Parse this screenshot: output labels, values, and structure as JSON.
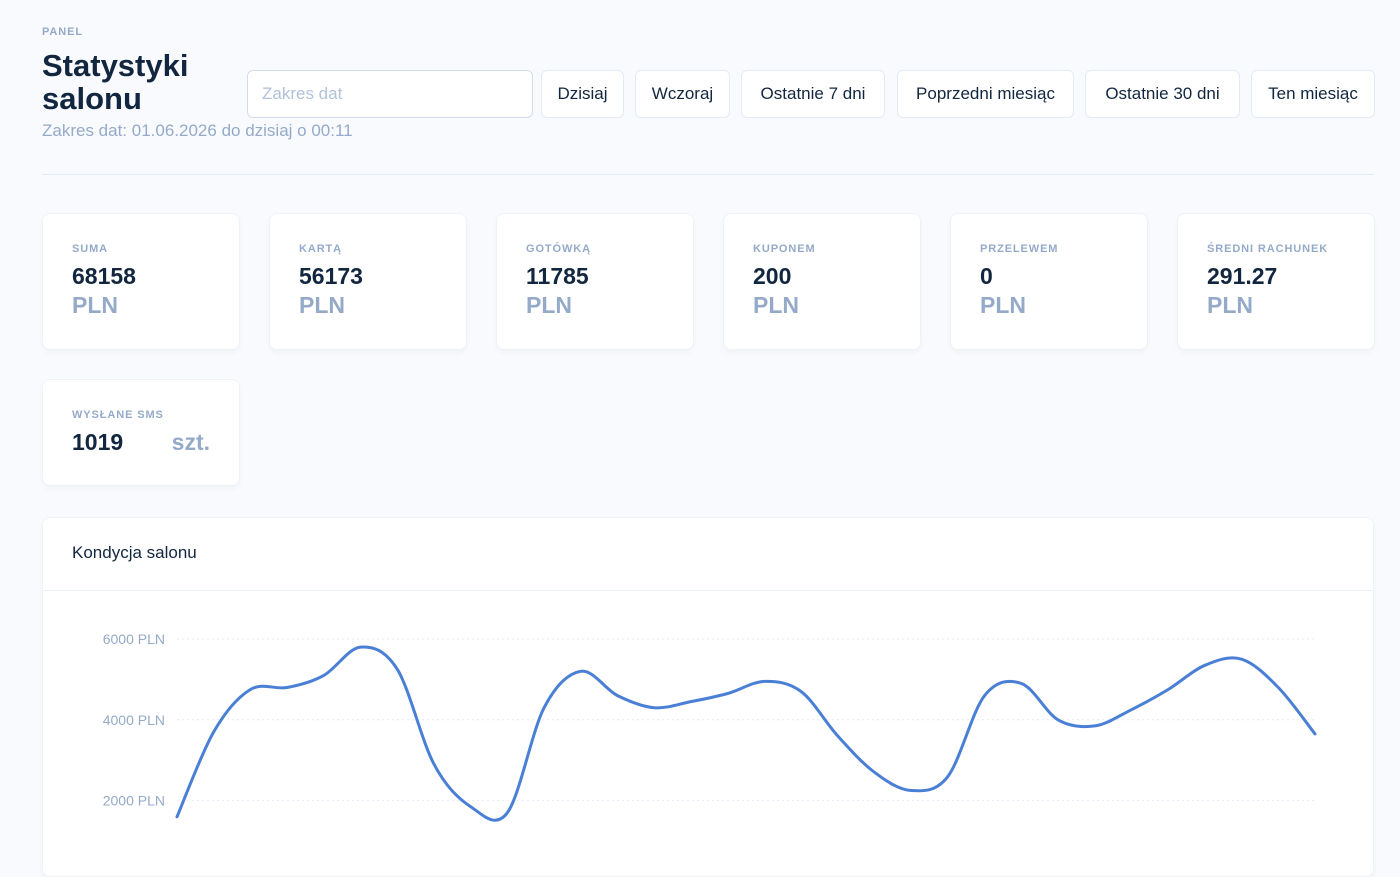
{
  "header": {
    "pretitle": "PANEL",
    "title": "Statystyki salonu",
    "subtitle": "Zakres dat: 01.06.2026 do dzisiaj o 00:11"
  },
  "filters": {
    "date_input": {
      "placeholder": "Zakres dat",
      "value": ""
    },
    "buttons": [
      {
        "label": "Dzisiaj"
      },
      {
        "label": "Wczoraj"
      },
      {
        "label": "Ostatnie 7 dni"
      },
      {
        "label": "Poprzedni miesiąc"
      },
      {
        "label": "Ostatnie 30 dni"
      },
      {
        "label": "Ten miesiąc"
      }
    ]
  },
  "stats": [
    {
      "label": "SUMA",
      "value": "68158",
      "unit": "PLN"
    },
    {
      "label": "KARTĄ",
      "value": "56173",
      "unit": "PLN"
    },
    {
      "label": "GOTÓWKĄ",
      "value": "11785",
      "unit": "PLN"
    },
    {
      "label": "KUPONEM",
      "value": "200",
      "unit": "PLN"
    },
    {
      "label": "PRZELEWEM",
      "value": "0",
      "unit": "PLN"
    },
    {
      "label": "ŚREDNI RACHUNEK",
      "value": "291.27",
      "unit": "PLN"
    }
  ],
  "sms": {
    "label": "WYSŁANE SMS",
    "value": "1019",
    "unit": "szt."
  },
  "chart": {
    "title": "Kondycja salonu"
  },
  "colors": {
    "accent": "#2c7be5",
    "line": "#4a7fd6",
    "muted": "#95aac9",
    "gridline": "#e3ebf6",
    "background": "#f8fafd"
  },
  "chart_data": {
    "type": "line",
    "title": "",
    "xlabel": "",
    "ylabel": "",
    "y_tick_labels": [
      "6000 PLN",
      "4000 PLN",
      "2000 PLN"
    ],
    "y_ticks": [
      6000,
      4000,
      2000
    ],
    "ylim": [
      0,
      6500
    ],
    "grid": true,
    "values": [
      1600,
      3700,
      4750,
      4800,
      5100,
      5800,
      5250,
      2900,
      1850,
      1700,
      4300,
      5200,
      4600,
      4300,
      4450,
      4650,
      4950,
      4700,
      3600,
      2700,
      2250,
      2600,
      4600,
      4900,
      4000,
      3850,
      4250,
      4750,
      5350,
      5500,
      4800,
      3650
    ]
  }
}
